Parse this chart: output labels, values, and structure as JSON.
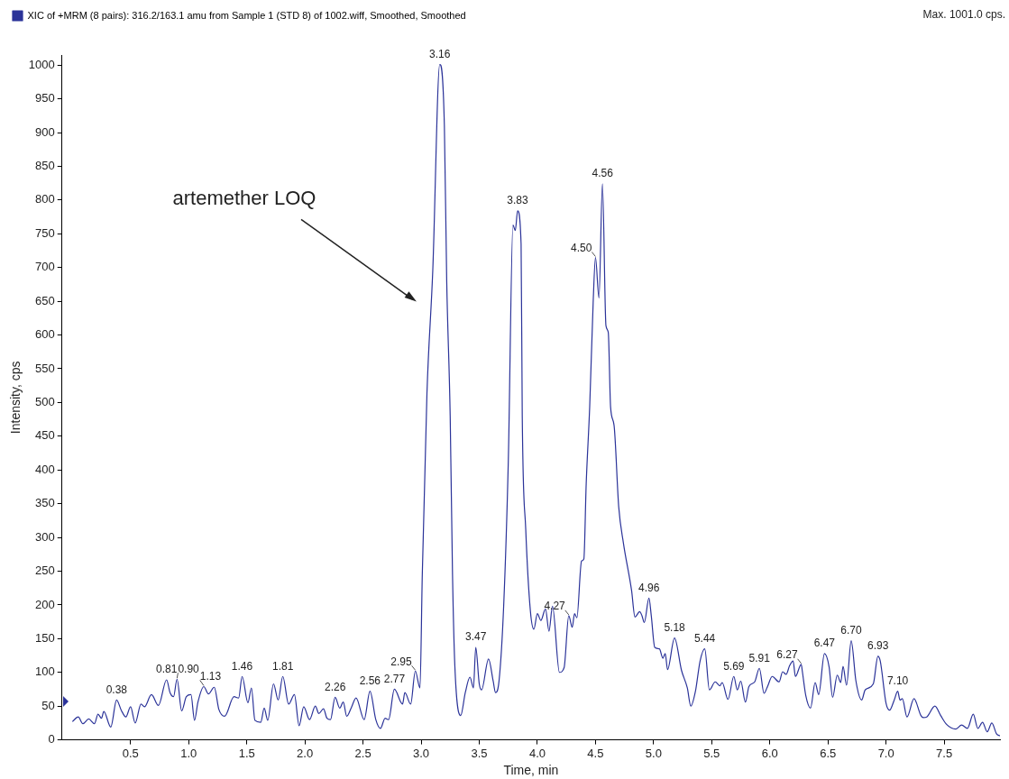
{
  "chart_data": {
    "type": "line",
    "xlabel": "Time, min",
    "ylabel": "Intensity, cps",
    "legend": "top left",
    "marker": "none",
    "line_style": "solid",
    "grid": false,
    "xlim": [
      -0.09,
      7.98
    ],
    "ylim": [
      0,
      1015
    ],
    "xticks": [
      0.5,
      {
        "value": 1,
        "label": "1.0"
      },
      1.5,
      {
        "value": 2,
        "label": "2.0"
      },
      2.5,
      {
        "value": 3,
        "label": "3.0"
      },
      3.5,
      {
        "value": 4,
        "label": "4.0"
      },
      4.5,
      {
        "value": 5,
        "label": "5.0"
      },
      5.5,
      {
        "value": 6,
        "label": "6.0"
      },
      6.5,
      {
        "value": 7,
        "label": "7.0"
      },
      7.5
    ],
    "yticks": [
      0,
      50,
      100,
      150,
      200,
      250,
      300,
      350,
      400,
      450,
      500,
      550,
      600,
      650,
      700,
      750,
      800,
      850,
      900,
      950,
      1000
    ],
    "series": [
      {
        "name": "XIC of +MRM (8 pairs): 316.2/163.1 amu from Sample 1 (STD 8) of 1002.wiff, Smoothed, Smoothed",
        "color": "#2b3399",
        "x": [
          0.0,
          0.05,
          0.09,
          0.14,
          0.19,
          0.22,
          0.25,
          0.27,
          0.33,
          0.38,
          0.42,
          0.46,
          0.5,
          0.54,
          0.59,
          0.62,
          0.68,
          0.74,
          0.81,
          0.84,
          0.87,
          0.9,
          0.94,
          0.98,
          1.02,
          1.05,
          1.08,
          1.13,
          1.17,
          1.22,
          1.26,
          1.31,
          1.39,
          1.43,
          1.46,
          1.51,
          1.54,
          1.57,
          1.62,
          1.65,
          1.68,
          1.73,
          1.77,
          1.81,
          1.86,
          1.91,
          1.95,
          1.99,
          2.04,
          2.09,
          2.12,
          2.16,
          2.19,
          2.22,
          2.26,
          2.3,
          2.33,
          2.36,
          2.4,
          2.44,
          2.51,
          2.56,
          2.61,
          2.65,
          2.69,
          2.72,
          2.77,
          2.84,
          2.86,
          2.91,
          2.95,
          2.99,
          3.01,
          3.05,
          3.1,
          3.16,
          3.2,
          3.22,
          3.25,
          3.27,
          3.29,
          3.34,
          3.38,
          3.42,
          3.45,
          3.47,
          3.5,
          3.52,
          3.58,
          3.62,
          3.64,
          3.67,
          3.71,
          3.75,
          3.79,
          3.81,
          3.83,
          3.86,
          3.87,
          3.9,
          3.94,
          3.97,
          4.0,
          4.03,
          4.07,
          4.1,
          4.13,
          4.19,
          4.23,
          4.27,
          4.3,
          4.32,
          4.34,
          4.38,
          4.4,
          4.42,
          4.45,
          4.48,
          4.5,
          4.53,
          4.56,
          4.59,
          4.61,
          4.63,
          4.66,
          4.7,
          4.74,
          4.81,
          4.84,
          4.88,
          4.9,
          4.92,
          4.96,
          4.98,
          5.01,
          5.05,
          5.08,
          5.1,
          5.12,
          5.18,
          5.24,
          5.29,
          5.32,
          5.36,
          5.4,
          5.44,
          5.48,
          5.53,
          5.57,
          5.59,
          5.64,
          5.69,
          5.72,
          5.75,
          5.79,
          5.82,
          5.87,
          5.91,
          5.95,
          5.98,
          6.02,
          6.08,
          6.11,
          6.14,
          6.17,
          6.2,
          6.22,
          6.27,
          6.28,
          6.31,
          6.35,
          6.39,
          6.42,
          6.47,
          6.51,
          6.54,
          6.58,
          6.61,
          6.63,
          6.66,
          6.7,
          6.74,
          6.79,
          6.82,
          6.89,
          6.93,
          6.95,
          7.0,
          7.03,
          7.07,
          7.1,
          7.12,
          7.14,
          7.18,
          7.24,
          7.3,
          7.32,
          7.35,
          7.42,
          7.47,
          7.52,
          7.6,
          7.65,
          7.7,
          7.75,
          7.79,
          7.83,
          7.87,
          7.91,
          7.95,
          7.98
        ],
        "values": [
          27,
          34,
          24,
          31,
          24,
          38,
          32,
          42,
          19,
          59,
          44,
          34,
          49,
          25,
          53,
          49,
          67,
          51,
          89,
          70,
          64,
          90,
          43,
          64,
          67,
          29,
          56,
          79,
          68,
          78,
          45,
          35,
          64,
          62,
          94,
          55,
          77,
          29,
          26,
          47,
          29,
          83,
          59,
          94,
          53,
          67,
          21,
          49,
          30,
          50,
          39,
          46,
          32,
          30,
          63,
          47,
          56,
          35,
          48,
          62,
          30,
          72,
          30,
          17,
          32,
          30,
          75,
          53,
          70,
          53,
          102,
          77,
          245,
          513,
          695,
          1001,
          910,
          681,
          480,
          245,
          110,
          36,
          70,
          93,
          77,
          137,
          83,
          74,
          120,
          87,
          70,
          87,
          198,
          413,
          763,
          755,
          784,
          735,
          480,
          312,
          191,
          164,
          187,
          177,
          194,
          161,
          198,
          100,
          107,
          184,
          167,
          187,
          181,
          265,
          268,
          379,
          493,
          648,
          715,
          655,
          824,
          614,
          604,
          493,
          466,
          345,
          292,
          222,
          182,
          190,
          184,
          174,
          210,
          184,
          137,
          135,
          121,
          128,
          104,
          151,
          103,
          77,
          50,
          72,
          117,
          135,
          74,
          86,
          80,
          85,
          60,
          94,
          74,
          87,
          56,
          79,
          86,
          106,
          69,
          79,
          94,
          86,
          101,
          97,
          110,
          117,
          94,
          112,
          101,
          65,
          47,
          85,
          67,
          128,
          108,
          63,
          96,
          85,
          109,
          81,
          147,
          88,
          59,
          74,
          83,
          124,
          117,
          54,
          44,
          59,
          72,
          59,
          61,
          34,
          61,
          36,
          33,
          34,
          50,
          36,
          23,
          16,
          22,
          17,
          38,
          17,
          26,
          12,
          25,
          9,
          6
        ]
      }
    ],
    "annotations": [
      "artemether LOQ",
      {
        "text": "0.38",
        "x": 0.38,
        "y": 59
      },
      {
        "text": "0.81",
        "x": 0.81,
        "y": 89
      },
      {
        "text": "0.90",
        "x": 0.9,
        "y": 90
      },
      {
        "text": "1.13",
        "x": 1.13,
        "y": 79
      },
      {
        "text": "1.46",
        "x": 1.46,
        "y": 94
      },
      {
        "text": "1.81",
        "x": 1.81,
        "y": 94
      },
      {
        "text": "2.26",
        "x": 2.26,
        "y": 63
      },
      {
        "text": "2.56",
        "x": 2.56,
        "y": 72
      },
      {
        "text": "2.77",
        "x": 2.77,
        "y": 75
      },
      {
        "text": "2.95",
        "x": 2.95,
        "y": 102
      },
      {
        "text": "3.16",
        "x": 3.16,
        "y": 1001
      },
      {
        "text": "3.47",
        "x": 3.47,
        "y": 137
      },
      {
        "text": "3.83",
        "x": 3.83,
        "y": 784
      },
      {
        "text": "4.27",
        "x": 4.27,
        "y": 184
      },
      {
        "text": "4.50",
        "x": 4.5,
        "y": 715
      },
      {
        "text": "4.56",
        "x": 4.56,
        "y": 824
      },
      {
        "text": "4.96",
        "x": 4.96,
        "y": 210
      },
      {
        "text": "5.18",
        "x": 5.18,
        "y": 151
      },
      {
        "text": "5.44",
        "x": 5.44,
        "y": 135
      },
      {
        "text": "5.69",
        "x": 5.69,
        "y": 94
      },
      {
        "text": "5.91",
        "x": 5.91,
        "y": 106
      },
      {
        "text": "6.27",
        "x": 6.27,
        "y": 112
      },
      {
        "text": "6.47",
        "x": 6.47,
        "y": 128
      },
      {
        "text": "6.70",
        "x": 6.7,
        "y": 147
      },
      {
        "text": "6.93",
        "x": 6.93,
        "y": 124
      },
      {
        "text": "7.10",
        "x": 7.1,
        "y": 72
      },
      "Max. 1001.0 cps."
    ]
  }
}
